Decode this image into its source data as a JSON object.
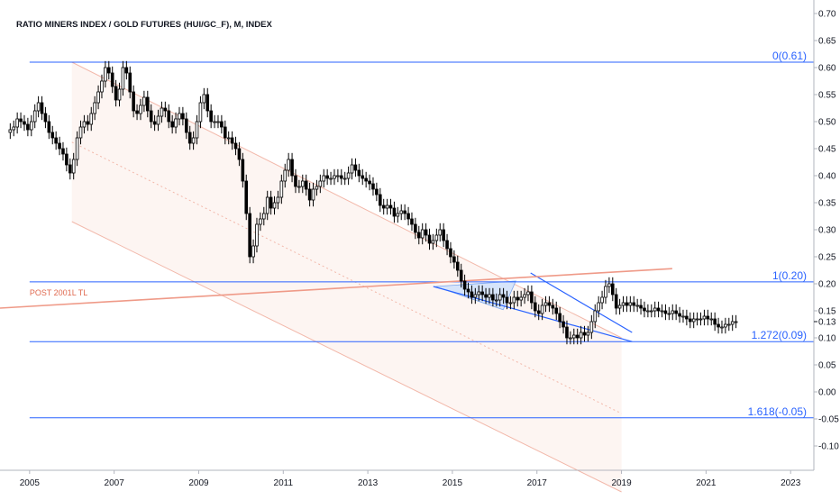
{
  "chart_data": {
    "type": "candlestick",
    "title": "RATIO MINERS INDEX / GOLD FUTURES (HUI/GC_F), M, INDEX",
    "x_ticks": [
      "2005",
      "2007",
      "2009",
      "2011",
      "2013",
      "2015",
      "2017",
      "2019",
      "2021",
      "2023"
    ],
    "y_ticks": [
      "0.70",
      "0.65",
      "0.60",
      "0.55",
      "0.50",
      "0.45",
      "0.40",
      "0.35",
      "0.30",
      "0.25",
      "0.20",
      "0.15",
      "0.10",
      "0.05",
      "0.00",
      "-0.05",
      "-0.10"
    ],
    "current_value_label": "0.13",
    "ylim": [
      -0.145,
      0.725
    ],
    "xlim": [
      2004.3,
      2023.55
    ],
    "fib_levels": [
      {
        "label": "0(0.61)",
        "value": 0.61
      },
      {
        "label": "1(0.20)",
        "value": 0.2035
      },
      {
        "label": "1.272(0.09)",
        "value": 0.093
      },
      {
        "label": "1.618(-0.05)",
        "value": -0.048
      }
    ],
    "annotations": [
      {
        "text": "POST 2001L TL"
      }
    ],
    "trendline": {
      "name": "POST 2001L TL",
      "points": [
        [
          2004.3,
          0.155
        ],
        [
          2020.2,
          0.228
        ]
      ]
    },
    "regression_channel": {
      "upper": [
        [
          2006.0,
          0.61
        ],
        [
          2019.0,
          0.1
        ]
      ],
      "middle": [
        [
          2006.0,
          0.462
        ],
        [
          2019.0,
          -0.04
        ]
      ],
      "lower": [
        [
          2006.0,
          0.315
        ],
        [
          2019.0,
          -0.185
        ]
      ]
    },
    "wedge": {
      "upper": [
        [
          2016.85,
          0.22
        ],
        [
          2019.25,
          0.11
        ]
      ],
      "lower": [
        [
          2014.55,
          0.195
        ],
        [
          2019.25,
          0.093
        ]
      ],
      "triangle": [
        [
          2014.6,
          0.195
        ],
        [
          2016.5,
          0.205
        ],
        [
          2016.2,
          0.152
        ]
      ]
    },
    "series": [
      {
        "name": "HUI/GC_F",
        "interval": "monthly",
        "start": "2004-07",
        "close": [
          0.485,
          0.49,
          0.505,
          0.5,
          0.495,
          0.485,
          0.5,
          0.52,
          0.535,
          0.515,
          0.5,
          0.48,
          0.47,
          0.46,
          0.45,
          0.44,
          0.42,
          0.405,
          0.43,
          0.47,
          0.49,
          0.5,
          0.495,
          0.515,
          0.535,
          0.555,
          0.575,
          0.6,
          0.59,
          0.565,
          0.54,
          0.56,
          0.6,
          0.59,
          0.555,
          0.52,
          0.515,
          0.53,
          0.545,
          0.52,
          0.5,
          0.495,
          0.51,
          0.525,
          0.52,
          0.5,
          0.49,
          0.505,
          0.515,
          0.505,
          0.48,
          0.46,
          0.47,
          0.5,
          0.535,
          0.55,
          0.52,
          0.5,
          0.5,
          0.5,
          0.49,
          0.47,
          0.47,
          0.46,
          0.45,
          0.43,
          0.39,
          0.33,
          0.25,
          0.27,
          0.31,
          0.32,
          0.33,
          0.36,
          0.34,
          0.35,
          0.36,
          0.39,
          0.41,
          0.43,
          0.4,
          0.38,
          0.38,
          0.39,
          0.375,
          0.355,
          0.375,
          0.38,
          0.39,
          0.4,
          0.395,
          0.395,
          0.4,
          0.4,
          0.395,
          0.395,
          0.405,
          0.42,
          0.41,
          0.4,
          0.395,
          0.39,
          0.385,
          0.375,
          0.365,
          0.345,
          0.34,
          0.345,
          0.34,
          0.325,
          0.33,
          0.335,
          0.33,
          0.32,
          0.31,
          0.295,
          0.285,
          0.3,
          0.29,
          0.275,
          0.28,
          0.29,
          0.3,
          0.28,
          0.265,
          0.25,
          0.24,
          0.225,
          0.205,
          0.19,
          0.185,
          0.175,
          0.18,
          0.185,
          0.18,
          0.175,
          0.18,
          0.17,
          0.17,
          0.18,
          0.175,
          0.165,
          0.165,
          0.175,
          0.17,
          0.175,
          0.18,
          0.185,
          0.165,
          0.15,
          0.145,
          0.16,
          0.165,
          0.16,
          0.155,
          0.145,
          0.13,
          0.12,
          0.1,
          0.1,
          0.105,
          0.1,
          0.11,
          0.105,
          0.11,
          0.13,
          0.15,
          0.165,
          0.175,
          0.195,
          0.2,
          0.18,
          0.155,
          0.16,
          0.165,
          0.16,
          0.165,
          0.16,
          0.16,
          0.155,
          0.15,
          0.15,
          0.15,
          0.155,
          0.15,
          0.15,
          0.145,
          0.145,
          0.15,
          0.145,
          0.14,
          0.14,
          0.135,
          0.13,
          0.135,
          0.135,
          0.135,
          0.14,
          0.135,
          0.135,
          0.125,
          0.12,
          0.12,
          0.125,
          0.125,
          0.13,
          0.13
        ]
      }
    ]
  }
}
